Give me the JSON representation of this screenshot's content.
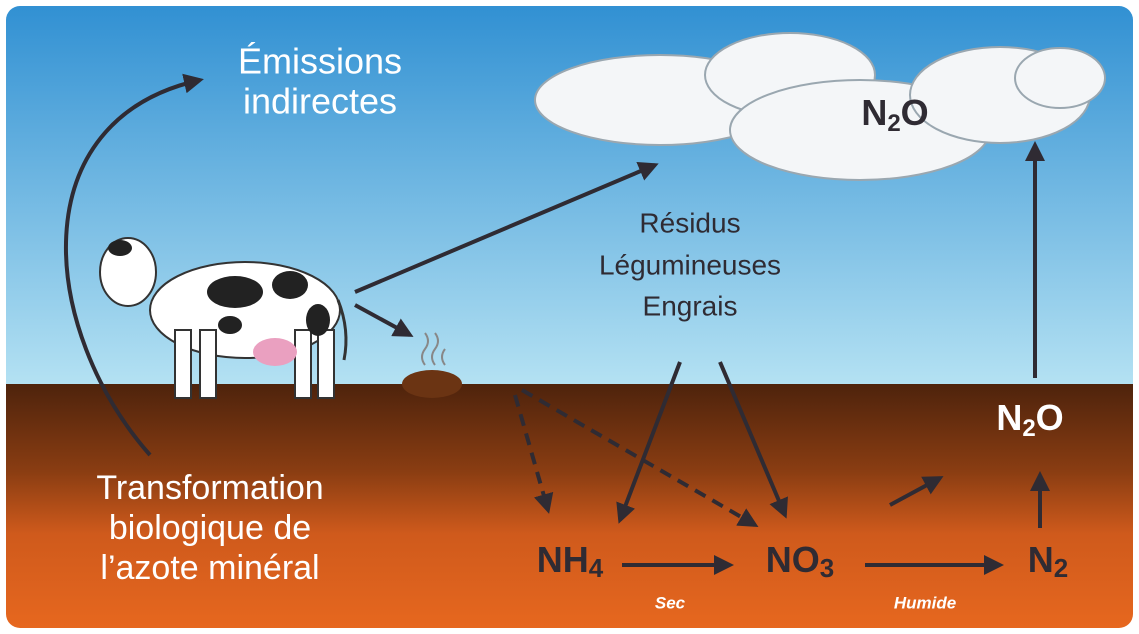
{
  "emissions": {
    "lines": [
      "Émissions",
      "indirectes"
    ]
  },
  "cloud_gas": {
    "parts": [
      "N",
      "2",
      "O"
    ]
  },
  "sources": [
    "Résidus",
    "Légumineuses",
    "Engrais"
  ],
  "soil_gas": {
    "parts": [
      "N",
      "2",
      "O"
    ]
  },
  "transformation": {
    "lines": [
      "Transformation",
      "biologique de",
      "l’azote minéral"
    ]
  },
  "nh4": {
    "parts": [
      "NH",
      "4"
    ]
  },
  "no3": {
    "parts": [
      "NO",
      "3"
    ]
  },
  "n2": {
    "parts": [
      "N",
      "2"
    ]
  },
  "dry": "Sec",
  "wet": "Humide"
}
